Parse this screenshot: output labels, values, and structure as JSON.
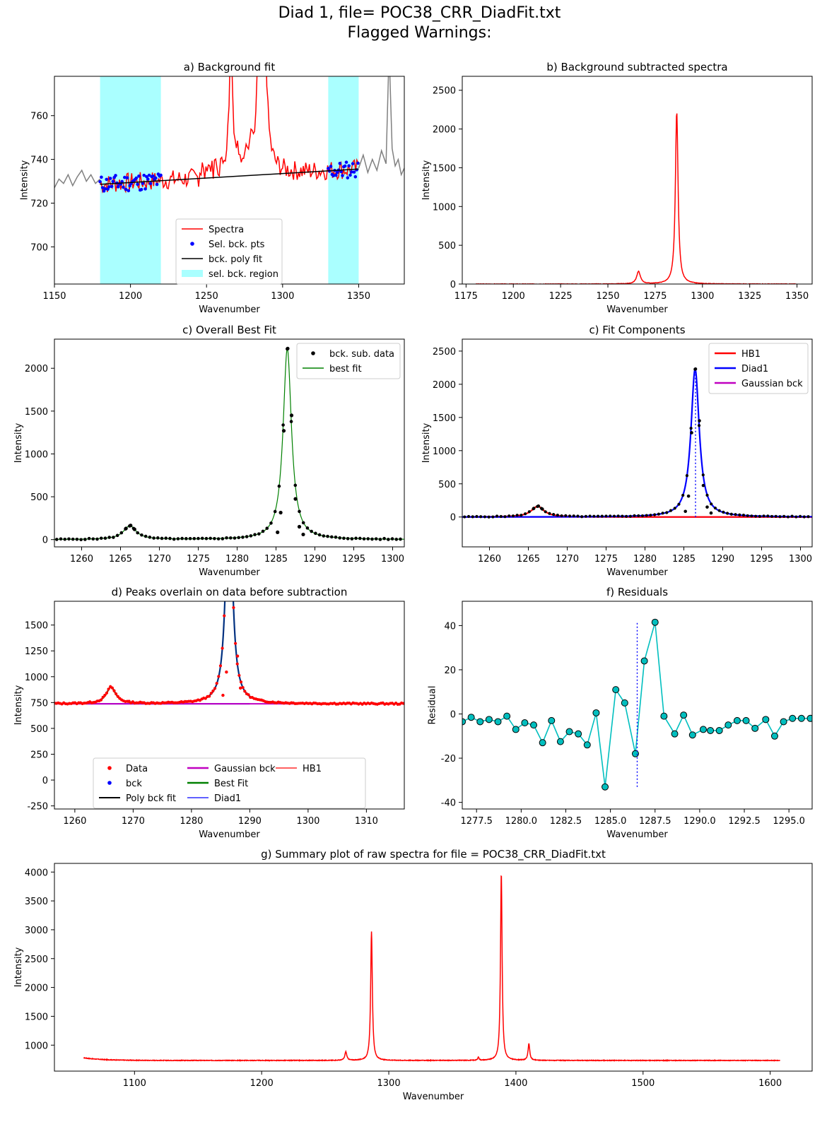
{
  "figure": {
    "title_line1": "Diad 1, file= POC38_CRR_DiadFit.txt",
    "title_line2": "Flagged Warnings:"
  },
  "colors": {
    "spectra": "#ff0000",
    "sel_pts": "#0000ff",
    "poly": "#000000",
    "sel_region": "#aaffff",
    "raw_gray": "#808080",
    "best_fit": "#008000",
    "hb1": "#ff0000",
    "diad1": "#0000ff",
    "gauss": "#c000c0",
    "residual": "#00bfbf",
    "dark_blue": "#003080",
    "dark_red": "#b03000"
  },
  "chart_data": [
    {
      "id": "a",
      "type": "line",
      "title": "a) Background fit",
      "xlabel": "Wavenumber",
      "ylabel": "Intensity",
      "xlim": [
        1150,
        1380
      ],
      "ylim": [
        683,
        778
      ],
      "xticks": [
        1150,
        1200,
        1250,
        1300,
        1350
      ],
      "yticks": [
        700,
        720,
        740,
        760
      ],
      "grid": false,
      "sel_regions": [
        [
          1180,
          1220
        ],
        [
          1330,
          1350
        ]
      ],
      "poly_fit": {
        "x": [
          1180,
          1350
        ],
        "y": [
          728.6,
          735.6
        ]
      },
      "raw_outside": [
        [
          1150,
          727
        ],
        [
          1153,
          731
        ],
        [
          1156,
          729
        ],
        [
          1159,
          733
        ],
        [
          1162,
          728
        ],
        [
          1165,
          732
        ],
        [
          1168,
          735
        ],
        [
          1171,
          730
        ],
        [
          1174,
          733
        ],
        [
          1177,
          729
        ],
        [
          1180,
          731
        ],
        [
          1350,
          736
        ],
        [
          1353,
          742
        ],
        [
          1356,
          734
        ],
        [
          1359,
          740
        ],
        [
          1362,
          735
        ],
        [
          1365,
          744
        ],
        [
          1368,
          738
        ],
        [
          1370,
          790
        ],
        [
          1372,
          745
        ],
        [
          1374,
          737
        ],
        [
          1376,
          740
        ],
        [
          1378,
          733
        ],
        [
          1380,
          736
        ]
      ],
      "spectra_peaks": [
        {
          "x": 1266,
          "y": 790
        },
        {
          "x": 1286,
          "y": 790
        }
      ],
      "legend": [
        "Spectra",
        "Sel. bck. pts",
        "bck. poly fit",
        "sel. bck. region"
      ],
      "legend_loc": "lower-center"
    },
    {
      "id": "b",
      "type": "line",
      "title": "b) Background subtracted spectra",
      "xlabel": "Wavenumber",
      "ylabel": "Intensity",
      "xlim": [
        1173,
        1358
      ],
      "ylim": [
        0,
        2680
      ],
      "xticks": [
        1175,
        1200,
        1225,
        1250,
        1275,
        1300,
        1325,
        1350
      ],
      "yticks": [
        0,
        500,
        1000,
        1500,
        2000,
        2500
      ],
      "peaks": [
        {
          "center": 1266.2,
          "height": 160,
          "width": 1.2
        },
        {
          "center": 1286.4,
          "height": 2230,
          "width": 0.85
        }
      ],
      "x_range": [
        1180,
        1350
      ]
    },
    {
      "id": "c1",
      "type": "scatter",
      "title": "c) Overall Best Fit",
      "xlabel": "Wavenumber",
      "ylabel": "Intensity",
      "xlim": [
        1256.5,
        1301.5
      ],
      "ylim": [
        -85,
        2340
      ],
      "xticks": [
        1260,
        1265,
        1270,
        1275,
        1280,
        1285,
        1290,
        1295,
        1300
      ],
      "yticks": [
        0,
        500,
        1000,
        1500,
        2000
      ],
      "legend": [
        "bck. sub. data",
        "best fit"
      ],
      "legend_loc": "top-right",
      "data_points": [
        [
          1265.7,
          130
        ],
        [
          1266.3,
          165
        ],
        [
          1266.8,
          120
        ],
        [
          1285.2,
          85
        ],
        [
          1285.6,
          315
        ],
        [
          1286.0,
          1270
        ],
        [
          1286.5,
          2230
        ],
        [
          1287.0,
          1450
        ],
        [
          1287.5,
          475
        ],
        [
          1288.0,
          150
        ],
        [
          1288.5,
          60
        ]
      ]
    },
    {
      "id": "c2",
      "type": "line",
      "title": "c) Fit Components",
      "xlabel": "Wavenumber",
      "ylabel": "Intensity",
      "xlim": [
        1256.5,
        1301.5
      ],
      "ylim": [
        -450,
        2680
      ],
      "xticks": [
        1260,
        1265,
        1270,
        1275,
        1280,
        1285,
        1290,
        1295,
        1300
      ],
      "yticks": [
        0,
        500,
        1000,
        1500,
        2000,
        2500
      ],
      "legend": [
        "HB1",
        "Diad1",
        "Gaussian bck"
      ],
      "legend_loc": "top-right",
      "peak_center_marker": 1286.5
    },
    {
      "id": "d",
      "type": "line",
      "title": "d) Peaks overlain on data before subtraction",
      "xlabel": "Wavenumber",
      "ylabel": "Intensity",
      "xlim": [
        1256.5,
        1316.5
      ],
      "ylim": [
        -280,
        1730
      ],
      "xticks": [
        1260,
        1270,
        1280,
        1290,
        1300,
        1310
      ],
      "yticks": [
        -250,
        0,
        250,
        500,
        750,
        1000,
        1250,
        1500
      ],
      "baseline": 738,
      "legend": [
        "Data",
        "bck",
        "Poly bck fit",
        "Gaussian bck",
        "Best Fit",
        "Diad1",
        "HB1"
      ],
      "legend_loc": "lower-center"
    },
    {
      "id": "f",
      "type": "scatter",
      "title": "f) Residuals",
      "xlabel": "Wavenumber",
      "ylabel": "Residual",
      "xlim": [
        1276.7,
        1296.3
      ],
      "ylim": [
        -43,
        51
      ],
      "xticks": [
        1277.5,
        1280.0,
        1282.5,
        1285.0,
        1287.5,
        1290.0,
        1292.5,
        1295.0
      ],
      "xtick_labels": [
        "1277.5",
        "1280.0",
        "1282.5",
        "1285.0",
        "1287.5",
        "1290.0",
        "1292.5",
        "1295.0"
      ],
      "yticks": [
        -40,
        -20,
        0,
        20,
        40
      ],
      "peak_center_marker": 1286.5,
      "x": [
        1276.7,
        1277.2,
        1277.7,
        1278.2,
        1278.7,
        1279.2,
        1279.7,
        1280.2,
        1280.7,
        1281.2,
        1281.7,
        1282.2,
        1282.7,
        1283.2,
        1283.7,
        1284.2,
        1284.7,
        1285.3,
        1285.8,
        1286.4,
        1286.9,
        1287.5,
        1288.0,
        1288.6,
        1289.1,
        1289.6,
        1290.2,
        1290.6,
        1291.1,
        1291.6,
        1292.1,
        1292.6,
        1293.1,
        1293.7,
        1294.2,
        1294.7,
        1295.2,
        1295.7,
        1296.2
      ],
      "y": [
        -3.5,
        -1.5,
        -3.5,
        -2.5,
        -3.5,
        -1,
        -7,
        -4,
        -5,
        -13,
        -3,
        -12.5,
        -8,
        -9,
        -14,
        0.5,
        -33,
        11,
        5,
        -18,
        24,
        41.5,
        -1,
        -9,
        -0.5,
        -9.5,
        -7,
        -7.5,
        -7.5,
        -5,
        -3,
        -3,
        -6.5,
        -2.5,
        -10,
        -3.5,
        -2,
        -2,
        -2
      ]
    },
    {
      "id": "g",
      "type": "line",
      "title": "g) Summary plot of raw spectra for file = POC38_CRR_DiadFit.txt",
      "xlabel": "Wavenumber",
      "ylabel": "Intensity",
      "xlim": [
        1037,
        1633
      ],
      "ylim": [
        550,
        4150
      ],
      "xticks": [
        1100,
        1200,
        1300,
        1400,
        1500,
        1600
      ],
      "yticks": [
        1000,
        1500,
        2000,
        2500,
        3000,
        3500,
        4000
      ],
      "x_range": [
        1060,
        1608
      ],
      "peaks": [
        {
          "center": 1266.2,
          "height": 150,
          "width": 0.9
        },
        {
          "center": 1286.4,
          "height": 2230,
          "width": 0.8
        },
        {
          "center": 1370.5,
          "height": 55,
          "width": 0.6
        },
        {
          "center": 1388.5,
          "height": 3250,
          "width": 0.75
        },
        {
          "center": 1410.2,
          "height": 290,
          "width": 0.8
        }
      ]
    }
  ]
}
